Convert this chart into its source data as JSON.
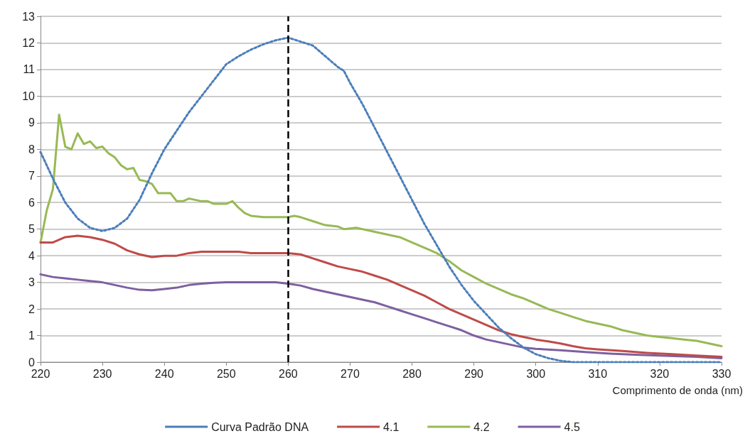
{
  "chart_data": {
    "type": "line",
    "xlabel": "Comprimento de onda (nm)",
    "xlim": [
      220,
      330
    ],
    "xticks": [
      220,
      230,
      240,
      250,
      260,
      270,
      280,
      290,
      300,
      310,
      320,
      330
    ],
    "ylim": [
      0,
      13
    ],
    "yticks": [
      0,
      1,
      2,
      3,
      4,
      5,
      6,
      7,
      8,
      9,
      10,
      11,
      12,
      13
    ],
    "grid": "y",
    "legend": "bottom",
    "marker": "none",
    "ref_lines": [
      {
        "axis": "x",
        "value": 260,
        "color": "#000000",
        "line_style": "dashed"
      }
    ],
    "series": [
      {
        "name": "Curva Padrão DNA",
        "color": "#4a7ebb",
        "line_style": "dotted",
        "x": [
          220,
          222,
          224,
          226,
          228,
          230,
          232,
          234,
          236,
          238,
          240,
          242,
          244,
          246,
          248,
          250,
          252,
          254,
          256,
          258,
          260,
          262,
          264,
          266,
          268,
          269,
          270,
          272,
          274,
          276,
          278,
          280,
          282,
          284,
          286,
          288,
          290,
          292,
          294,
          296,
          298,
          300,
          302,
          304,
          306,
          310,
          320,
          330
        ],
        "values": [
          7.9,
          6.9,
          6.0,
          5.4,
          5.05,
          4.93,
          5.05,
          5.4,
          6.1,
          7.1,
          8.0,
          8.7,
          9.4,
          10.0,
          10.6,
          11.2,
          11.5,
          11.75,
          11.95,
          12.1,
          12.2,
          12.05,
          11.9,
          11.5,
          11.1,
          10.95,
          10.5,
          9.7,
          8.8,
          7.9,
          7.0,
          6.1,
          5.2,
          4.4,
          3.6,
          2.9,
          2.3,
          1.8,
          1.3,
          0.9,
          0.55,
          0.3,
          0.15,
          0.05,
          0,
          0,
          0,
          0
        ]
      },
      {
        "name": "4.1",
        "color": "#be4b48",
        "line_style": "solid",
        "x": [
          220,
          222,
          224,
          226,
          228,
          230,
          232,
          234,
          236,
          238,
          240,
          242,
          244,
          246,
          248,
          250,
          252,
          254,
          256,
          258,
          260,
          262,
          264,
          266,
          268,
          270,
          272,
          274,
          276,
          278,
          280,
          282,
          284,
          286,
          288,
          290,
          292,
          294,
          296,
          298,
          300,
          302,
          304,
          306,
          308,
          310,
          314,
          318,
          322,
          326,
          330
        ],
        "values": [
          4.5,
          4.5,
          4.7,
          4.75,
          4.7,
          4.6,
          4.45,
          4.2,
          4.05,
          3.95,
          4.0,
          4.0,
          4.1,
          4.15,
          4.15,
          4.15,
          4.15,
          4.1,
          4.1,
          4.1,
          4.1,
          4.05,
          3.9,
          3.75,
          3.6,
          3.5,
          3.4,
          3.25,
          3.1,
          2.9,
          2.7,
          2.5,
          2.25,
          2.0,
          1.8,
          1.6,
          1.4,
          1.2,
          1.05,
          0.95,
          0.85,
          0.78,
          0.7,
          0.6,
          0.52,
          0.48,
          0.42,
          0.35,
          0.3,
          0.25,
          0.2
        ]
      },
      {
        "name": "4.2",
        "color": "#98b954",
        "line_style": "solid",
        "x": [
          220,
          221,
          222,
          223,
          224,
          225,
          226,
          227,
          228,
          229,
          230,
          231,
          232,
          233,
          234,
          235,
          236,
          237,
          238,
          239,
          240,
          241,
          242,
          243,
          244,
          246,
          247,
          248,
          250,
          251,
          252,
          253,
          254,
          256,
          258,
          260,
          261,
          262,
          264,
          266,
          268,
          269,
          271,
          274,
          276,
          278,
          280,
          282,
          284,
          286,
          288,
          290,
          292,
          294,
          296,
          298,
          300,
          302,
          304,
          306,
          308,
          310,
          312,
          314,
          316,
          318,
          320,
          322,
          324,
          326,
          328,
          330
        ],
        "values": [
          4.5,
          5.7,
          6.5,
          9.3,
          8.1,
          8.0,
          8.6,
          8.2,
          8.3,
          8.05,
          8.1,
          7.85,
          7.7,
          7.4,
          7.25,
          7.3,
          6.85,
          6.8,
          6.7,
          6.35,
          6.35,
          6.35,
          6.05,
          6.05,
          6.15,
          6.05,
          6.05,
          5.95,
          5.95,
          6.05,
          5.8,
          5.6,
          5.5,
          5.45,
          5.45,
          5.45,
          5.5,
          5.45,
          5.3,
          5.15,
          5.1,
          5.0,
          5.05,
          4.9,
          4.8,
          4.7,
          4.5,
          4.3,
          4.1,
          3.8,
          3.45,
          3.2,
          2.95,
          2.75,
          2.55,
          2.4,
          2.2,
          2.0,
          1.85,
          1.7,
          1.55,
          1.45,
          1.35,
          1.2,
          1.1,
          1.0,
          0.95,
          0.9,
          0.85,
          0.8,
          0.7,
          0.6
        ]
      },
      {
        "name": "4.5",
        "color": "#7d60a0",
        "line_style": "solid",
        "x": [
          220,
          222,
          224,
          226,
          228,
          230,
          232,
          234,
          236,
          238,
          240,
          242,
          244,
          246,
          248,
          250,
          254,
          258,
          260,
          262,
          264,
          266,
          268,
          270,
          272,
          274,
          276,
          278,
          280,
          282,
          284,
          286,
          288,
          290,
          292,
          294,
          296,
          298,
          300,
          304,
          308,
          312,
          316,
          320,
          326,
          330
        ],
        "values": [
          3.3,
          3.2,
          3.15,
          3.1,
          3.05,
          3.0,
          2.9,
          2.8,
          2.72,
          2.7,
          2.75,
          2.8,
          2.9,
          2.95,
          2.98,
          3.0,
          3.0,
          3.0,
          2.95,
          2.88,
          2.75,
          2.65,
          2.55,
          2.45,
          2.35,
          2.25,
          2.1,
          1.95,
          1.8,
          1.65,
          1.5,
          1.35,
          1.2,
          1.0,
          0.85,
          0.75,
          0.65,
          0.55,
          0.5,
          0.45,
          0.38,
          0.32,
          0.28,
          0.25,
          0.2,
          0.15
        ]
      }
    ]
  }
}
